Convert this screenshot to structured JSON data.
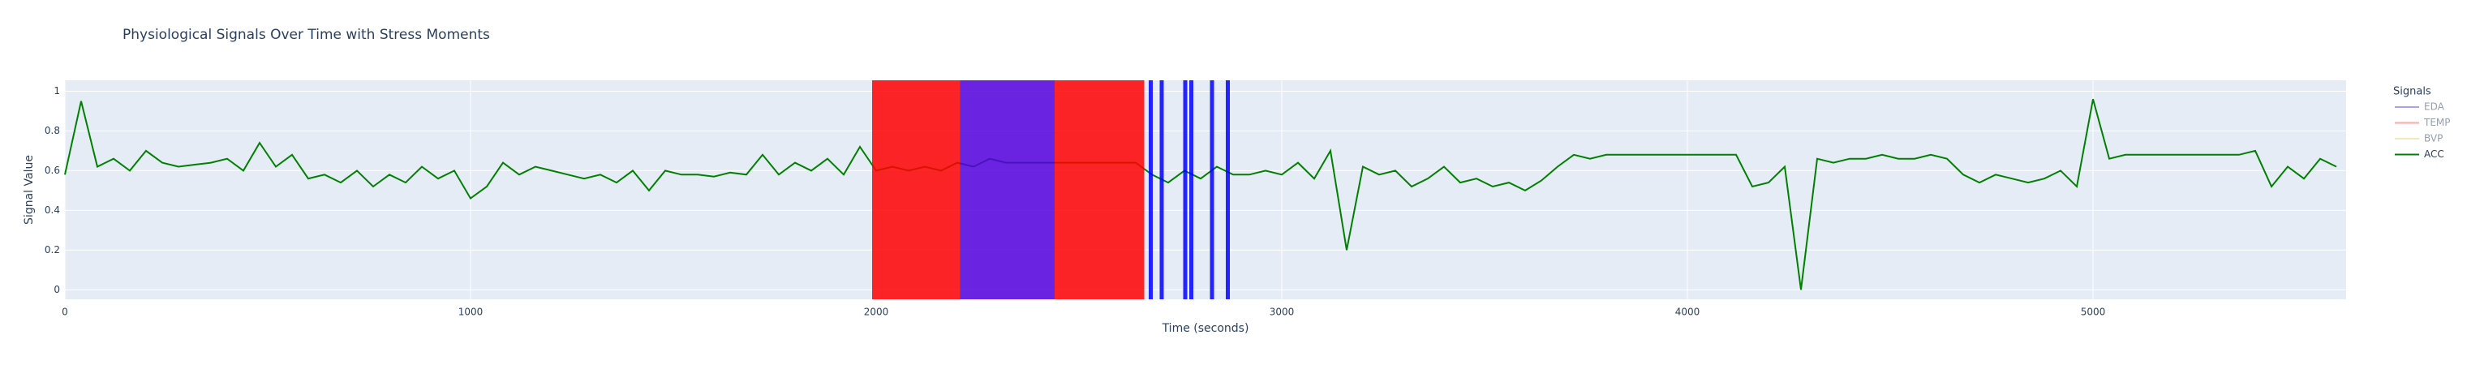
{
  "chart_data": {
    "type": "line",
    "title": "Physiological Signals Over Time with Stress Moments",
    "xlabel": "Time (seconds)",
    "ylabel": "Signal Value",
    "legend_title": "Signals",
    "legend_position": "right",
    "xlim": [
      0,
      5624
    ],
    "ylim": [
      -0.048,
      1.055
    ],
    "xticks": [
      0,
      1000,
      2000,
      3000,
      4000,
      5000
    ],
    "yticks": [
      0,
      0.2,
      0.4,
      0.6,
      0.8,
      1
    ],
    "grid": true,
    "x": [
      0,
      40,
      80,
      120,
      160,
      200,
      240,
      280,
      320,
      360,
      400,
      440,
      480,
      520,
      560,
      600,
      640,
      680,
      720,
      760,
      800,
      840,
      880,
      920,
      960,
      1000,
      1040,
      1080,
      1120,
      1160,
      1200,
      1240,
      1280,
      1320,
      1360,
      1400,
      1440,
      1480,
      1520,
      1560,
      1600,
      1640,
      1680,
      1720,
      1760,
      1800,
      1840,
      1880,
      1920,
      1960,
      2000,
      2040,
      2080,
      2120,
      2160,
      2200,
      2240,
      2280,
      2320,
      2360,
      2400,
      2440,
      2480,
      2520,
      2560,
      2600,
      2640,
      2680,
      2720,
      2760,
      2800,
      2840,
      2880,
      2920,
      2960,
      3000,
      3040,
      3080,
      3120,
      3160,
      3200,
      3240,
      3280,
      3320,
      3360,
      3400,
      3440,
      3480,
      3520,
      3560,
      3600,
      3640,
      3680,
      3720,
      3760,
      3800,
      3840,
      3880,
      3920,
      3960,
      4000,
      4040,
      4080,
      4120,
      4160,
      4200,
      4240,
      4280,
      4320,
      4360,
      4400,
      4440,
      4480,
      4520,
      4560,
      4600,
      4640,
      4680,
      4720,
      4760,
      4800,
      4840,
      4880,
      4920,
      4960,
      5000,
      5040,
      5080,
      5120,
      5160,
      5200,
      5240,
      5280,
      5320,
      5360,
      5400,
      5440,
      5480,
      5520,
      5560,
      5600
    ],
    "series": [
      {
        "name": "EDA",
        "color": "#4b4bd1",
        "visible": "legendonly"
      },
      {
        "name": "TEMP",
        "color": "#ff5050",
        "visible": "legendonly"
      },
      {
        "name": "BVP",
        "color": "#e6d27a",
        "visible": "legendonly"
      },
      {
        "name": "ACC",
        "color": "#008000",
        "visible": "true",
        "values": [
          0.58,
          0.95,
          0.62,
          0.66,
          0.6,
          0.7,
          0.64,
          0.62,
          0.63,
          0.64,
          0.66,
          0.6,
          0.74,
          0.62,
          0.68,
          0.56,
          0.58,
          0.54,
          0.6,
          0.52,
          0.58,
          0.54,
          0.62,
          0.56,
          0.6,
          0.46,
          0.52,
          0.64,
          0.58,
          0.62,
          0.6,
          0.58,
          0.56,
          0.58,
          0.54,
          0.6,
          0.5,
          0.6,
          0.58,
          0.58,
          0.57,
          0.59,
          0.58,
          0.68,
          0.58,
          0.64,
          0.6,
          0.66,
          0.58,
          0.72,
          0.6,
          0.62,
          0.6,
          0.62,
          0.6,
          0.64,
          0.62,
          0.66,
          0.64,
          0.64,
          0.64,
          0.64,
          0.64,
          0.64,
          0.64,
          0.64,
          0.64,
          0.58,
          0.54,
          0.6,
          0.56,
          0.62,
          0.58,
          0.58,
          0.6,
          0.58,
          0.64,
          0.56,
          0.7,
          0.2,
          0.62,
          0.58,
          0.6,
          0.52,
          0.56,
          0.62,
          0.54,
          0.56,
          0.52,
          0.54,
          0.5,
          0.55,
          0.62,
          0.68,
          0.66,
          0.68,
          0.68,
          0.68,
          0.68,
          0.68,
          0.68,
          0.68,
          0.68,
          0.68,
          0.52,
          0.54,
          0.62,
          0.0,
          0.66,
          0.64,
          0.66,
          0.66,
          0.68,
          0.66,
          0.66,
          0.68,
          0.66,
          0.58,
          0.54,
          0.58,
          0.56,
          0.54,
          0.56,
          0.6,
          0.52,
          0.96,
          0.66,
          0.68,
          0.68,
          0.68,
          0.68,
          0.68,
          0.68,
          0.68,
          0.68,
          0.7,
          0.52,
          0.62,
          0.56,
          0.66,
          0.62
        ]
      }
    ],
    "stress_moments": [
      {
        "x0": 1990,
        "x1": 2207,
        "color": "#ff0000"
      },
      {
        "x0": 2207,
        "x1": 2440,
        "color": "#5500dd"
      },
      {
        "x0": 2440,
        "x1": 2661,
        "color": "#ff0000"
      },
      {
        "x0": 2672,
        "x1": 2682,
        "color": "#0000ff"
      },
      {
        "x0": 2699,
        "x1": 2709,
        "color": "#0000ff"
      },
      {
        "x0": 2757,
        "x1": 2767,
        "color": "#0000ff"
      },
      {
        "x0": 2772,
        "x1": 2782,
        "color": "#0000ff"
      },
      {
        "x0": 2823,
        "x1": 2833,
        "color": "#0000ff"
      },
      {
        "x0": 2862,
        "x1": 2872,
        "color": "#0000ff"
      }
    ]
  }
}
